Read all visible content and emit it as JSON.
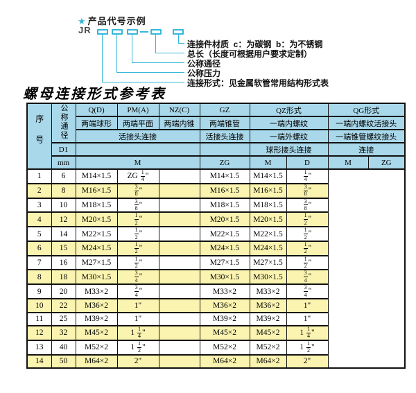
{
  "colors": {
    "accent_line": "#35b6d9",
    "header_bg": "#a9d8ea",
    "row_alt_bg": "#faf4b0"
  },
  "diagram": {
    "star_icon": "★",
    "heading": "产品代号示例",
    "prefix": "JR",
    "labels": [
      "连接件材质  c：为碳钢  b：为不锈钢",
      "总长（长度可根据用户要求定制）",
      "公称通径",
      "公称压力",
      "连接形式：见金属软管常用结构形式表"
    ]
  },
  "title": "螺母连接形式参考表",
  "table": {
    "header": {
      "serial": "序号",
      "nominal_diameter": "公称通径",
      "d1": "D1",
      "mm": "mm",
      "q_d": "Q(D)",
      "pm_a": "PM(A)",
      "nz_c": "NZ(C)",
      "gz": "GZ",
      "qz": "QZ形式",
      "qg": "QG形式",
      "q_d_desc": "两端球形",
      "pm_a_desc": "两端平面",
      "nz_c_desc": "两端内锥",
      "gz_desc": "两端锥管",
      "qz_desc1": "一端内螺纹",
      "qg_desc1": "一端内螺纹活接头",
      "union_conn": "活接头连接",
      "gz_conn": "活接头连接",
      "qz_desc2": "一端外螺纹",
      "qg_desc2": "一端锥管螺纹接头",
      "qz_conn": "球形接头连接",
      "qg_conn": "连接",
      "m": "M",
      "zg": "ZG",
      "qz_m": "M",
      "qz_d": "D",
      "qg_m": "M",
      "qg_zg": "ZG"
    },
    "rows": [
      {
        "no": "1",
        "mm": "6",
        "m": "M14×1.5",
        "zg": "ZG 1/4\"",
        "qz_m": "",
        "qz_d": "M14×1.5",
        "qg_m": "M14×1.5",
        "qg_zg": "1/4\""
      },
      {
        "no": "2",
        "mm": "8",
        "m": "M16×1.5",
        "zg": "3/8\"",
        "qz_m": "",
        "qz_d": "M16×1.5",
        "qg_m": "M16×1.5",
        "qg_zg": "3/8\""
      },
      {
        "no": "3",
        "mm": "10",
        "m": "M18×1.5",
        "zg": "3/8\"",
        "qz_m": "",
        "qz_d": "M18×1.5",
        "qg_m": "M18×1.5",
        "qg_zg": "3/8\""
      },
      {
        "no": "4",
        "mm": "12",
        "m": "M20×1.5",
        "zg": "1/2\"",
        "qz_m": "",
        "qz_d": "M20×1.5",
        "qg_m": "M20×1.5",
        "qg_zg": "1/2\""
      },
      {
        "no": "5",
        "mm": "14",
        "m": "M22×1.5",
        "zg": "1/2\"",
        "qz_m": "",
        "qz_d": "M22×1.5",
        "qg_m": "M22×1.5",
        "qg_zg": "1/2\""
      },
      {
        "no": "6",
        "mm": "15",
        "m": "M24×1.5",
        "zg": "1/2\"",
        "qz_m": "",
        "qz_d": "M24×1.5",
        "qg_m": "M24×1.5",
        "qg_zg": "1/2\""
      },
      {
        "no": "7",
        "mm": "16",
        "m": "M27×1.5",
        "zg": "1/2\"",
        "qz_m": "",
        "qz_d": "M27×1.5",
        "qg_m": "M27×1.5",
        "qg_zg": "1/2\""
      },
      {
        "no": "8",
        "mm": "18",
        "m": "M30×1.5",
        "zg": "3/4\"",
        "qz_m": "",
        "qz_d": "M30×1.5",
        "qg_m": "M30×1.5",
        "qg_zg": "3/4\""
      },
      {
        "no": "9",
        "mm": "20",
        "m": "M33×2",
        "zg": "3/4\"",
        "qz_m": "",
        "qz_d": "M33×2",
        "qg_m": "M33×2",
        "qg_zg": "3/4\""
      },
      {
        "no": "10",
        "mm": "22",
        "m": "M36×2",
        "zg": "1\"",
        "qz_m": "",
        "qz_d": "M36×2",
        "qg_m": "M36×2",
        "qg_zg": "1\""
      },
      {
        "no": "11",
        "mm": "25",
        "m": "M39×2",
        "zg": "1\"",
        "qz_m": "",
        "qz_d": "M39×2",
        "qg_m": "M39×2",
        "qg_zg": "1\""
      },
      {
        "no": "12",
        "mm": "32",
        "m": "M45×2",
        "zg": "1 1/4\"",
        "qz_m": "",
        "qz_d": "M45×2",
        "qg_m": "M45×2",
        "qg_zg": "1 1/4\""
      },
      {
        "no": "13",
        "mm": "40",
        "m": "M52×2",
        "zg": "1 1/2\"",
        "qz_m": "",
        "qz_d": "M52×2",
        "qg_m": "M52×2",
        "qg_zg": "1 1/2\""
      },
      {
        "no": "14",
        "mm": "50",
        "m": "M64×2",
        "zg": "2\"",
        "qz_m": "",
        "qz_d": "M64×2",
        "qg_m": "M64×2",
        "qg_zg": "2\""
      }
    ]
  }
}
